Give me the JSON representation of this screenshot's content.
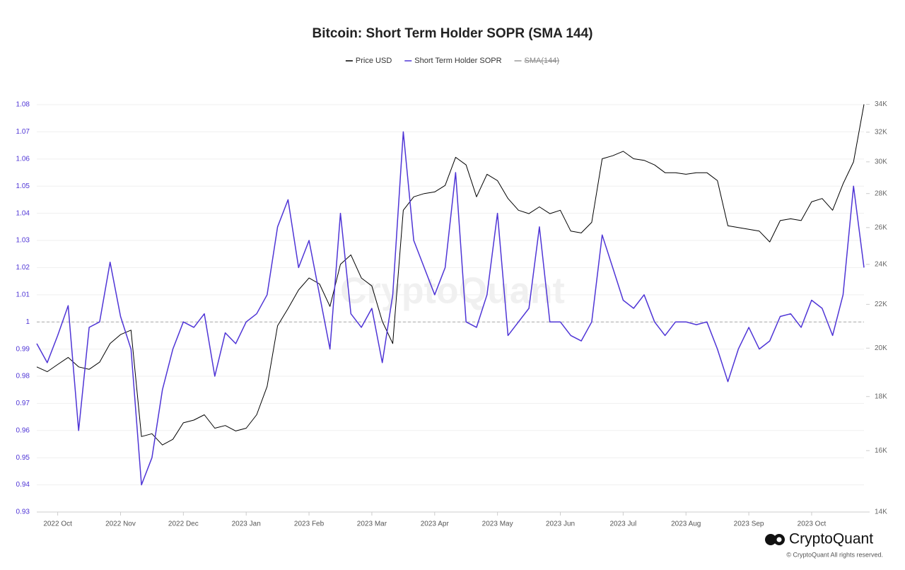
{
  "chart_data": {
    "type": "line",
    "title": "Bitcoin: Short Term Holder SOPR (SMA 144)",
    "watermark": "CryptoQuant",
    "brand": "CryptoQuant",
    "copyright": "© CryptoQuant All rights reserved.",
    "categories": [
      null,
      null,
      "2022 Oct",
      null,
      null,
      null,
      null,
      null,
      "2022 Nov",
      null,
      null,
      null,
      null,
      null,
      "2022 Dec",
      null,
      null,
      null,
      null,
      null,
      "2023 Jan",
      null,
      null,
      null,
      null,
      null,
      "2023 Feb",
      null,
      null,
      null,
      null,
      null,
      "2023 Mar",
      null,
      null,
      null,
      null,
      null,
      "2023 Apr",
      null,
      null,
      null,
      null,
      null,
      "2023 May",
      null,
      null,
      null,
      null,
      null,
      "2023 Jun",
      null,
      null,
      null,
      null,
      null,
      "2023 Jul",
      null,
      null,
      null,
      null,
      null,
      "2023 Aug",
      null,
      null,
      null,
      null,
      null,
      "2023 Sep",
      null,
      null,
      null,
      null,
      null,
      "2023 Oct",
      null,
      null,
      null,
      null,
      null
    ],
    "series": [
      {
        "name": "Price USD",
        "color": "#000000",
        "axis": "y2",
        "values": [
          19200,
          19000,
          19300,
          19600,
          19200,
          19100,
          19400,
          20200,
          20600,
          20800,
          16500,
          16600,
          16200,
          16400,
          17000,
          17100,
          17300,
          16800,
          16900,
          16700,
          16800,
          17300,
          18400,
          21000,
          21800,
          22700,
          23300,
          23000,
          21900,
          24000,
          24500,
          23300,
          22900,
          21200,
          20200,
          27000,
          27800,
          28000,
          28100,
          28500,
          30300,
          29800,
          27800,
          29200,
          28800,
          27700,
          27000,
          26800,
          27200,
          26800,
          27000,
          25800,
          25700,
          26300,
          30200,
          30400,
          30700,
          30200,
          30100,
          29800,
          29300,
          29300,
          29200,
          29300,
          29300,
          28800,
          26100,
          26000,
          25900,
          25800,
          25200,
          26400,
          26500,
          26400,
          27500,
          27700,
          27000,
          28600,
          30000,
          34000
        ]
      },
      {
        "name": "Short Term Holder SOPR",
        "color": "#4f35d6",
        "axis": "y",
        "values": [
          0.992,
          0.985,
          0.995,
          1.006,
          0.96,
          0.998,
          1.0,
          1.022,
          1.002,
          0.99,
          0.94,
          0.95,
          0.975,
          0.99,
          1.0,
          0.998,
          1.003,
          0.98,
          0.996,
          0.992,
          1.0,
          1.003,
          1.01,
          1.035,
          1.045,
          1.02,
          1.03,
          1.01,
          0.99,
          1.04,
          1.003,
          0.998,
          1.005,
          0.985,
          1.01,
          1.07,
          1.03,
          1.02,
          1.01,
          1.02,
          1.055,
          1.0,
          0.998,
          1.01,
          1.04,
          0.995,
          1.0,
          1.005,
          1.035,
          1.0,
          1.0,
          0.995,
          0.993,
          1.0,
          1.032,
          1.02,
          1.008,
          1.005,
          1.01,
          1.0,
          0.995,
          1.0,
          1.0,
          0.999,
          1.0,
          0.99,
          0.978,
          0.99,
          0.998,
          0.99,
          0.993,
          1.002,
          1.003,
          0.998,
          1.008,
          1.005,
          0.995,
          1.01,
          1.05,
          1.02
        ]
      }
    ],
    "hidden_series": [
      {
        "name": "SMA(144)",
        "color": "#9a9a9a"
      }
    ],
    "reference_lines": [
      1
    ],
    "ylim": [
      0.93,
      1.086
    ],
    "yticks": [
      0.93,
      0.94,
      0.95,
      0.96,
      0.97,
      0.98,
      0.99,
      1,
      1.01,
      1.02,
      1.03,
      1.04,
      1.05,
      1.06,
      1.07,
      1.08
    ],
    "y2lim": [
      14000,
      35200
    ],
    "y2scale": "log",
    "y2ticks": [
      {
        "value": 14000,
        "label": "14K"
      },
      {
        "value": 16000,
        "label": "16K"
      },
      {
        "value": 18000,
        "label": "18K"
      },
      {
        "value": 20000,
        "label": "20K"
      },
      {
        "value": 22000,
        "label": "22K"
      },
      {
        "value": 24000,
        "label": "24K"
      },
      {
        "value": 26000,
        "label": "26K"
      },
      {
        "value": 28000,
        "label": "28K"
      },
      {
        "value": 30000,
        "label": "30K"
      },
      {
        "value": 32000,
        "label": "32K"
      },
      {
        "value": 34000,
        "label": "34K"
      }
    ],
    "ytick_color": "#4f35d6",
    "grid": true
  }
}
